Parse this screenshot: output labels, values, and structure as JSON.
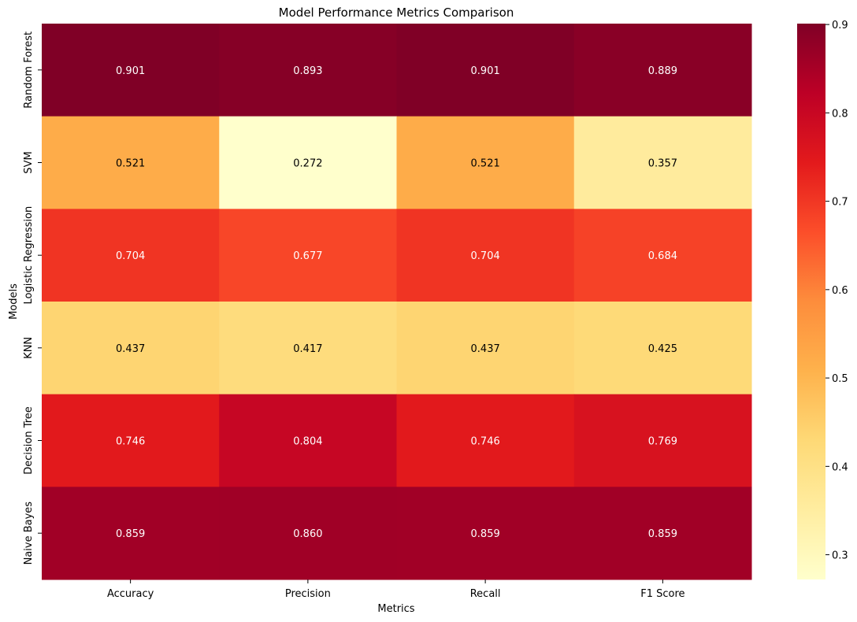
{
  "chart_data": {
    "type": "heatmap",
    "title": "Model Performance Metrics Comparison",
    "xlabel": "Metrics",
    "ylabel": "Models",
    "x_categories": [
      "Accuracy",
      "Precision",
      "Recall",
      "F1 Score"
    ],
    "y_categories": [
      "Random Forest",
      "SVM",
      "Logistic Regression",
      "KNN",
      "Decision Tree",
      "Naive Bayes"
    ],
    "values": [
      [
        0.901,
        0.893,
        0.901,
        0.889
      ],
      [
        0.521,
        0.272,
        0.521,
        0.357
      ],
      [
        0.704,
        0.677,
        0.704,
        0.684
      ],
      [
        0.437,
        0.417,
        0.437,
        0.425
      ],
      [
        0.746,
        0.804,
        0.746,
        0.769
      ],
      [
        0.859,
        0.86,
        0.859,
        0.859
      ]
    ],
    "cell_labels": [
      [
        "0.901",
        "0.893",
        "0.901",
        "0.889"
      ],
      [
        "0.521",
        "0.272",
        "0.521",
        "0.357"
      ],
      [
        "0.704",
        "0.677",
        "0.704",
        "0.684"
      ],
      [
        "0.437",
        "0.417",
        "0.437",
        "0.425"
      ],
      [
        "0.746",
        "0.804",
        "0.746",
        "0.769"
      ],
      [
        "0.859",
        "0.860",
        "0.859",
        "0.859"
      ]
    ],
    "colormap": "YlOrRd",
    "colormap_stops": [
      "#ffffcc",
      "#ffeda0",
      "#fed976",
      "#feb24c",
      "#fd8d3c",
      "#fc4e2a",
      "#e31a1c",
      "#bd0026",
      "#800026"
    ],
    "vmin": 0.272,
    "vmax": 0.901,
    "colorbar_ticks": [
      0.3,
      0.4,
      0.5,
      0.6,
      0.7,
      0.8,
      0.9
    ],
    "colorbar_tick_labels": [
      "0.3",
      "0.4",
      "0.5",
      "0.6",
      "0.7",
      "0.8",
      "0.9"
    ],
    "grid": false,
    "legend": "colorbar-right"
  }
}
